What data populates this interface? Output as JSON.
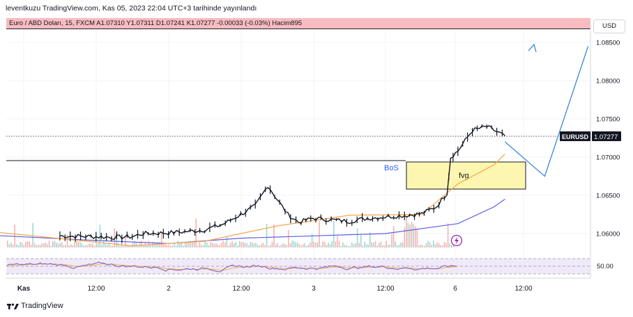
{
  "header": {
    "published": "leventkuzu TradingView.com, Kas 05, 2023 22:04 UTC+3 tarihinde yayınlandı"
  },
  "symbol_bar": {
    "text": "Euro / ABD Doları, 15, FXCM  A1.07310  Y1.07311  D1.07241  K1.07277  -0.00033 (-0.03%)  Hacim895"
  },
  "currency_button": "USD",
  "price_tag": {
    "symbol": "EURUSD",
    "price": "1.07277"
  },
  "rsi_level": "50.00",
  "annotations": {
    "bos": "BoS",
    "fvg": "fvg"
  },
  "footer": {
    "brand": "TradingView"
  },
  "colors": {
    "info_bar": "#f8bbc0",
    "fvg_fill": "#fdf6b0",
    "ma_fast": "#f5a64a",
    "ma_slow": "#5b5ce6",
    "arrow": "#3a86d9",
    "rsi": "#7e57c2",
    "volume_up": "#26a69a",
    "volume_down": "#ef5350"
  },
  "chart_data": {
    "type": "line",
    "instrument": "EURUSD",
    "yticks": [
      "1.08500",
      "1.08000",
      "1.07500",
      "1.07000",
      "1.06500",
      "1.06000"
    ],
    "xticks": [
      "Kas",
      "12:00",
      "2",
      "12:00",
      "3",
      "12:00",
      "6",
      "12:00"
    ],
    "ylim": [
      1.058,
      1.088
    ],
    "close_path": [
      [
        1,
        1.0597
      ],
      [
        2,
        1.0596
      ],
      [
        2.5,
        1.0595
      ],
      [
        3,
        1.0596
      ],
      [
        3.3,
        1.06
      ],
      [
        4,
        1.0601
      ],
      [
        4.6,
        1.0603
      ],
      [
        5,
        1.0605
      ],
      [
        5.5,
        1.0612
      ],
      [
        6,
        1.0625
      ],
      [
        6.4,
        1.0636
      ],
      [
        6.75,
        1.0663
      ],
      [
        7,
        1.0645
      ],
      [
        7.3,
        1.0625
      ],
      [
        7.6,
        1.0615
      ],
      [
        8,
        1.062
      ],
      [
        8.5,
        1.0618
      ],
      [
        9,
        1.0616
      ],
      [
        9.5,
        1.062
      ],
      [
        10,
        1.0622
      ],
      [
        10.6,
        1.0624
      ],
      [
        11,
        1.0626
      ],
      [
        11.4,
        1.0635
      ],
      [
        11.7,
        1.0653
      ],
      [
        11.8,
        1.07
      ],
      [
        12,
        1.0708
      ],
      [
        12.4,
        1.0735
      ],
      [
        12.8,
        1.074
      ],
      [
        13,
        1.0735
      ],
      [
        13.3,
        1.0728
      ]
    ],
    "ma_fast": [
      [
        -1,
        1.0603
      ],
      [
        3,
        1.0584
      ],
      [
        5,
        1.059
      ],
      [
        7,
        1.061
      ],
      [
        9,
        1.0624
      ],
      [
        11,
        1.0625
      ],
      [
        12,
        1.0665
      ],
      [
        13,
        1.069
      ],
      [
        13.3,
        1.0704
      ]
    ],
    "ma_slow": [
      [
        -1,
        1.0598
      ],
      [
        2,
        1.0591
      ],
      [
        4,
        1.0587
      ],
      [
        6,
        1.0594
      ],
      [
        8,
        1.0597
      ],
      [
        10,
        1.06
      ],
      [
        12,
        1.0613
      ],
      [
        13,
        1.0635
      ],
      [
        13.3,
        1.0645
      ]
    ],
    "bos_level": 1.0695,
    "fvg_zone": [
      1.0658,
      1.0695
    ],
    "projection": [
      [
        13.3,
        1.072
      ],
      [
        14.4,
        1.0675
      ],
      [
        15.6,
        1.0845
      ]
    ],
    "rsi_level": 50
  }
}
